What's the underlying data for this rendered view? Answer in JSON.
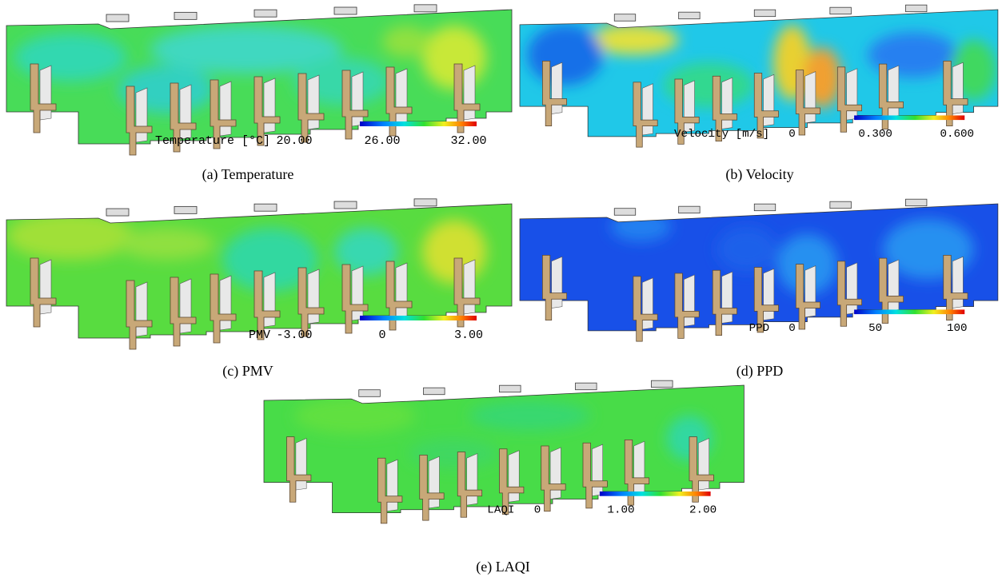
{
  "panels": [
    {
      "caption": "(a) Temperature",
      "legend_label": "Temperature [°C]",
      "ticks": [
        "20.00",
        "26.00",
        "32.00"
      ]
    },
    {
      "caption": "(b) Velocity",
      "legend_label": "Velocity [m/s]",
      "ticks": [
        "0",
        "0.300",
        "0.600"
      ]
    },
    {
      "caption": "(c) PMV",
      "legend_label": "PMV",
      "ticks": [
        "-3.00",
        "0",
        "3.00"
      ]
    },
    {
      "caption": "(d) PPD",
      "legend_label": "PPD",
      "ticks": [
        "0",
        "50",
        "100"
      ]
    },
    {
      "caption": "(e) LAQI",
      "legend_label": "LAQI",
      "ticks": [
        "0",
        "1.00",
        "2.00"
      ]
    }
  ]
}
